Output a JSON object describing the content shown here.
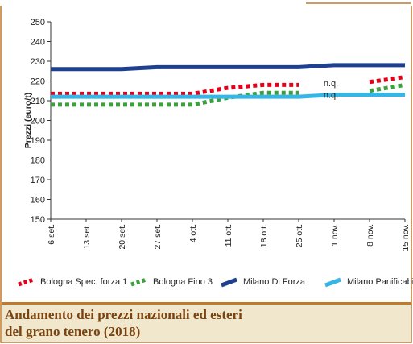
{
  "chart_data": {
    "type": "line",
    "title": "Andamento dei prezzi nazionali ed esteri del grano tenero (2018)",
    "title_lines": [
      "Andamento dei prezzi nazionali ed esteri",
      "del grano tenero (2018)"
    ],
    "ylabel": "Prezzi (euro/t)",
    "xlabel": "",
    "categories": [
      "6 set.",
      "13 set.",
      "20 set.",
      "27 set.",
      "4 ott.",
      "11 ott.",
      "18 ott.",
      "25 ott.",
      "1 nov.",
      "8 nov.",
      "15 nov."
    ],
    "ylim": [
      150,
      250
    ],
    "yticks": [
      150,
      160,
      170,
      180,
      190,
      200,
      210,
      220,
      230,
      240,
      250
    ],
    "grid": false,
    "legend_position": "bottom",
    "series": [
      {
        "name": "Bologna Spec. forza 1",
        "values": [
          213.5,
          213.5,
          213.5,
          213.5,
          213.5,
          216.5,
          218,
          218,
          null,
          219.5,
          222
        ],
        "color": "#e2001a",
        "style": "dotted"
      },
      {
        "name": "Bologna Fino 3",
        "values": [
          208,
          208,
          208,
          208,
          208,
          211.5,
          214,
          214,
          null,
          215,
          218
        ],
        "color": "#3ca03c",
        "style": "dotted"
      },
      {
        "name": "Milano Di Forza",
        "values": [
          226,
          226,
          226,
          227,
          227,
          227,
          227,
          227,
          228,
          228,
          228
        ],
        "color": "#1f3f8f",
        "style": "solid"
      },
      {
        "name": "Milano Panificabile",
        "values": [
          212,
          212,
          212,
          212,
          212,
          212,
          212,
          212,
          213,
          213,
          213
        ],
        "color": "#36b6e6",
        "style": "solid"
      }
    ],
    "annotations": [
      {
        "text": "n.q.",
        "x": "1 nov.",
        "y": 219
      },
      {
        "text": "n.q.",
        "x": "1 nov.",
        "y": 213
      }
    ],
    "frame_color": "#c07a2a"
  }
}
